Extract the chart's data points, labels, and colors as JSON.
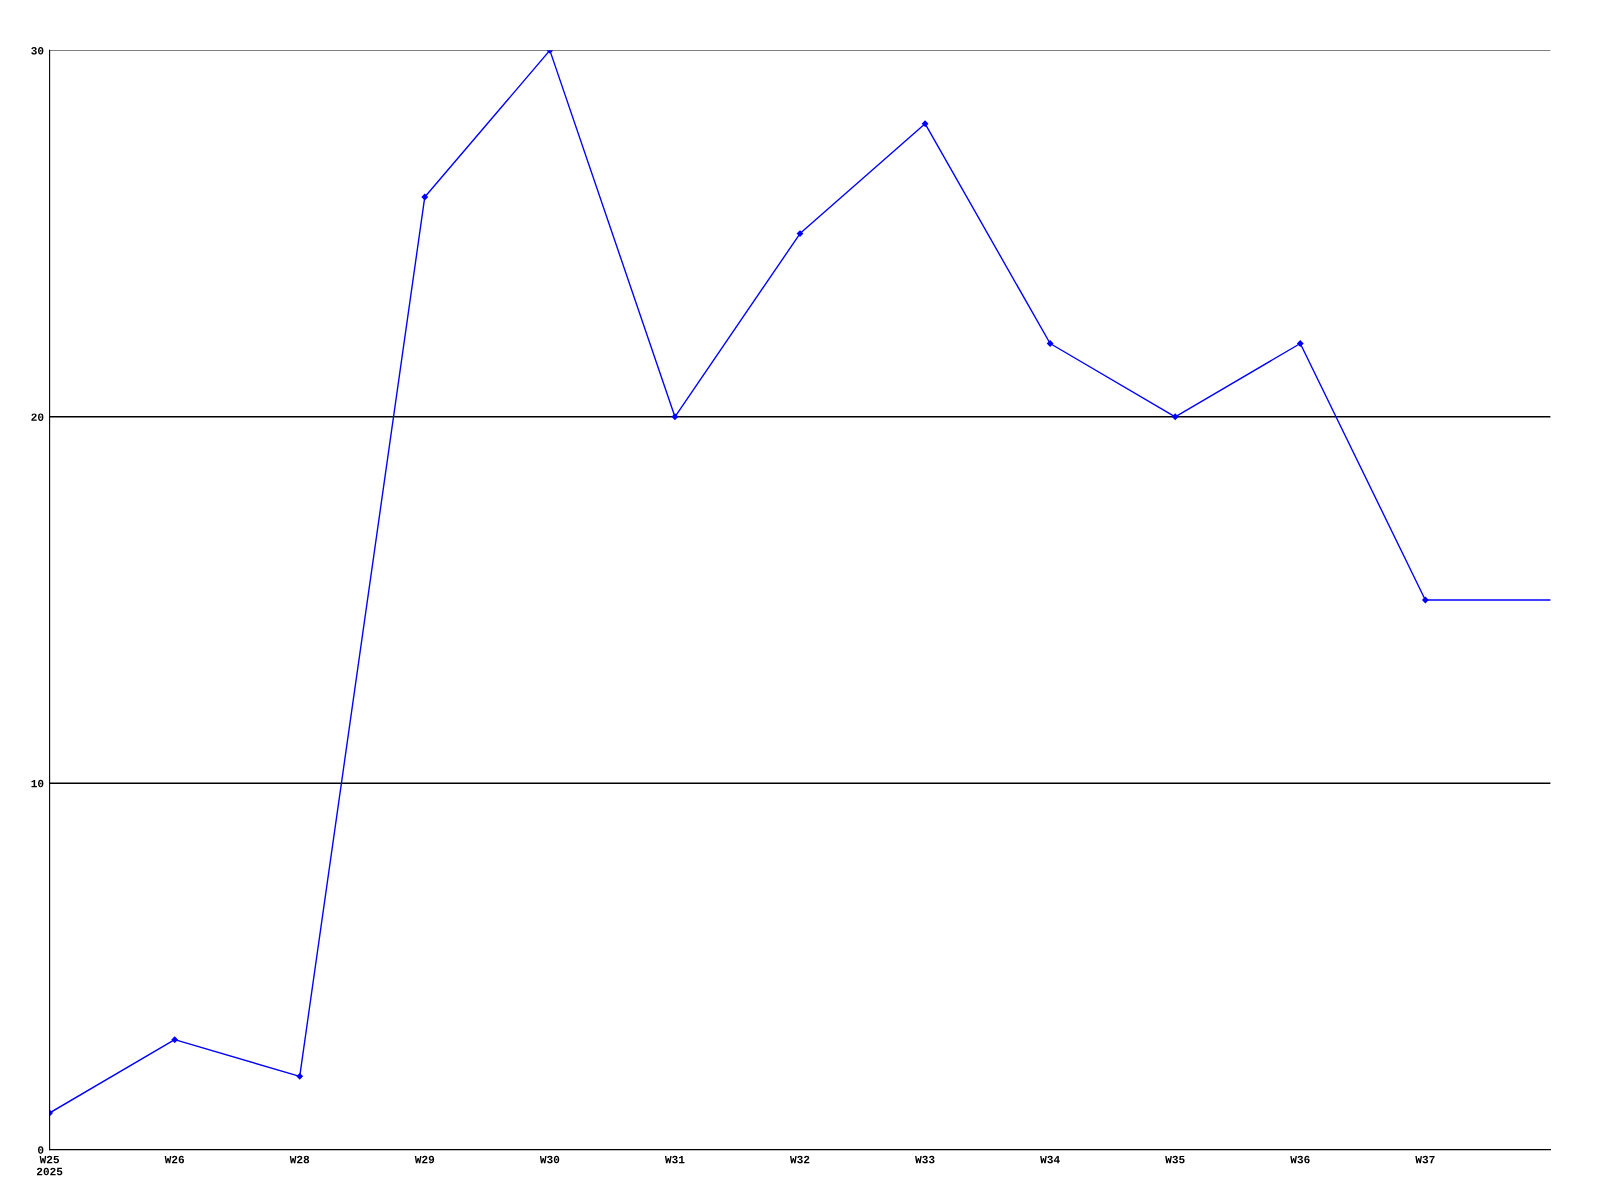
{
  "chart_data": {
    "type": "line",
    "categories": [
      "W25\n2025",
      "W26",
      "W28",
      "W29",
      "W30",
      "W31",
      "W32",
      "W33",
      "W34",
      "W35",
      "W36",
      "W37",
      null
    ],
    "series": [
      {
        "color": "#0000ff",
        "values": [
          1,
          3,
          2,
          26,
          30,
          20,
          25,
          28,
          22,
          20,
          22,
          15,
          15
        ]
      }
    ],
    "ylim": [
      0,
      30
    ],
    "yticks": [
      0,
      10,
      20,
      30
    ],
    "grid": "y",
    "marker": "diamond",
    "line_style": "solid"
  }
}
